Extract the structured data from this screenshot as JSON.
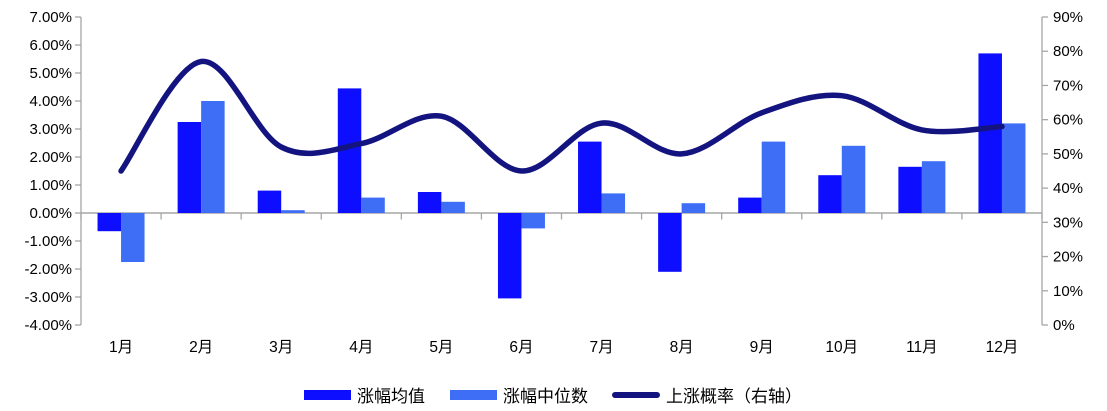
{
  "chart_data": {
    "type": "combo-bar-line",
    "title": "",
    "categories": [
      "1月",
      "2月",
      "3月",
      "4月",
      "5月",
      "6月",
      "7月",
      "8月",
      "9月",
      "10月",
      "11月",
      "12月"
    ],
    "series": [
      {
        "name": "涨幅均值",
        "type": "bar",
        "axis": "left",
        "color": "#0d0dff",
        "values": [
          -0.65,
          3.25,
          0.8,
          4.45,
          0.75,
          -3.05,
          2.55,
          -2.1,
          0.55,
          1.35,
          1.65,
          5.7
        ]
      },
      {
        "name": "涨幅中位数",
        "type": "bar",
        "axis": "left",
        "color": "#3e6ef5",
        "values": [
          -1.75,
          4.0,
          0.1,
          0.55,
          0.4,
          -0.55,
          0.7,
          0.35,
          2.55,
          2.4,
          1.85,
          3.2
        ]
      },
      {
        "name": "上涨概率（右轴）",
        "type": "line",
        "axis": "right",
        "color": "#141480",
        "values": [
          45,
          77,
          52,
          53,
          61,
          45,
          59,
          50,
          62,
          67,
          57,
          58
        ]
      }
    ],
    "left_axis": {
      "min": -4,
      "max": 7,
      "step": 1,
      "tick_labels": [
        "7.00%",
        "6.00%",
        "5.00%",
        "4.00%",
        "3.00%",
        "2.00%",
        "1.00%",
        "0.00%",
        "-1.00%",
        "-2.00%",
        "-3.00%",
        "-4.00%"
      ]
    },
    "right_axis": {
      "min": 0,
      "max": 90,
      "step": 10,
      "tick_labels": [
        "90%",
        "80%",
        "70%",
        "60%",
        "50%",
        "40%",
        "30%",
        "20%",
        "10%",
        "0%"
      ]
    },
    "legend": {
      "position": "bottom",
      "items": [
        "涨幅均值",
        "涨幅中位数",
        "上涨概率（右轴）"
      ]
    },
    "grid": "off",
    "line_smoothing": "on"
  },
  "colors": {
    "bar_mean": "#0d0dff",
    "bar_median": "#3e6ef5",
    "line_probability": "#141480",
    "axis_line": "#a6a6a6",
    "text": "#000000",
    "background": "#ffffff"
  }
}
